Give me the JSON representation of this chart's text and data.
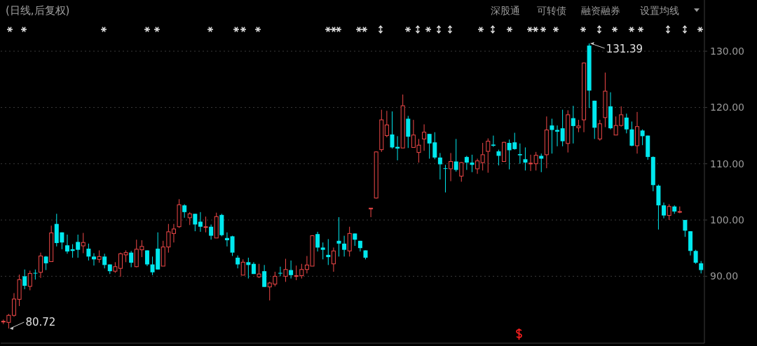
{
  "chart_data": {
    "type": "candlestick",
    "title": "(日线,后复权)",
    "categories": [
      null,
      null,
      null,
      null,
      null,
      null,
      null,
      null,
      null,
      null,
      null,
      null,
      null,
      null,
      null,
      null,
      null,
      null,
      null,
      null,
      null,
      null,
      null,
      null,
      null,
      null,
      null,
      null,
      null,
      null,
      null,
      null,
      null,
      null,
      null,
      null,
      null,
      null,
      null,
      null,
      null,
      null,
      null,
      null,
      null,
      null,
      null,
      null,
      null,
      null,
      null,
      null,
      null,
      null,
      null,
      null,
      null,
      null,
      null,
      null,
      null,
      null,
      null,
      null,
      null,
      null,
      null,
      null,
      null,
      null,
      null,
      null,
      null,
      null,
      null,
      null,
      null,
      null,
      null,
      null,
      null,
      null,
      null,
      null,
      null,
      null,
      null,
      null,
      null,
      null,
      null,
      null,
      null,
      null,
      null,
      null,
      null,
      null,
      null,
      null,
      null,
      null,
      null,
      null,
      null,
      null,
      null,
      null,
      null,
      null,
      null,
      null,
      null,
      null,
      null,
      null,
      null,
      null,
      null,
      null,
      null,
      null,
      null,
      null,
      null,
      null,
      null,
      null,
      null,
      null,
      null,
      null
    ],
    "ohlc": [
      [
        81.9,
        82.3,
        81.5,
        82.0
      ],
      [
        81.8,
        83.3,
        80.72,
        83.05
      ],
      [
        83.05,
        87.0,
        82.8,
        85.95
      ],
      [
        85.9,
        90.3,
        84.7,
        89.4
      ],
      [
        90.0,
        91.2,
        87.7,
        88.3
      ],
      [
        88.2,
        91.0,
        87.5,
        90.5
      ],
      [
        90.6,
        91.2,
        89.4,
        90.5
      ],
      [
        90.7,
        94.2,
        89.7,
        93.6
      ],
      [
        93.5,
        93.6,
        91.1,
        92.3
      ],
      [
        92.6,
        99.0,
        92.6,
        97.7
      ],
      [
        99.3,
        101.1,
        95.3,
        95.9
      ],
      [
        97.8,
        97.8,
        94.8,
        96.0
      ],
      [
        95.5,
        97.4,
        94.0,
        94.4
      ],
      [
        94.8,
        95.7,
        93.3,
        94.5
      ],
      [
        96.1,
        97.4,
        93.3,
        94.7
      ],
      [
        95.4,
        97.7,
        94.1,
        96.0
      ],
      [
        94.9,
        95.8,
        92.8,
        93.5
      ],
      [
        93.5,
        94.1,
        91.9,
        93.0
      ],
      [
        93.0,
        94.6,
        92.4,
        93.5
      ],
      [
        93.5,
        94.0,
        91.4,
        92.0
      ],
      [
        92.1,
        92.1,
        90.4,
        90.9
      ],
      [
        90.9,
        92.5,
        90.6,
        91.7
      ],
      [
        91.4,
        94.2,
        89.9,
        94.0
      ],
      [
        93.8,
        94.6,
        92.5,
        94.2
      ],
      [
        94.2,
        94.5,
        91.6,
        92.4
      ],
      [
        91.7,
        96.5,
        91.6,
        94.8
      ],
      [
        94.7,
        96.4,
        93.4,
        95.3
      ],
      [
        94.6,
        94.6,
        91.8,
        92.1
      ],
      [
        92.1,
        93.5,
        90.2,
        90.7
      ],
      [
        94.9,
        97.8,
        91.2,
        91.2
      ],
      [
        91.8,
        96.3,
        91.8,
        95.2
      ],
      [
        95.2,
        99.3,
        94.2,
        97.9
      ],
      [
        97.6,
        99.3,
        96.0,
        98.4
      ],
      [
        98.8,
        103.7,
        98.6,
        102.7
      ],
      [
        102.6,
        102.8,
        100.4,
        101.4
      ],
      [
        100.4,
        101.4,
        99.1,
        101.1
      ],
      [
        101.1,
        101.1,
        98.0,
        99.2
      ],
      [
        99.7,
        101.4,
        97.9,
        98.8
      ],
      [
        98.7,
        100.6,
        97.8,
        98.8
      ],
      [
        98.8,
        99.2,
        96.5,
        97.2
      ],
      [
        96.8,
        101.3,
        96.8,
        100.6
      ],
      [
        100.9,
        101.1,
        97.1,
        97.3
      ],
      [
        96.8,
        97.8,
        95.3,
        96.4
      ],
      [
        97.1,
        97.2,
        93.6,
        94.2
      ],
      [
        93.3,
        93.7,
        91.4,
        92.1
      ],
      [
        90.2,
        93.0,
        90.2,
        92.5
      ],
      [
        92.5,
        93.3,
        89.6,
        92.0
      ],
      [
        92.2,
        92.5,
        90.4,
        90.4
      ],
      [
        89.9,
        92.2,
        89.7,
        90.4
      ],
      [
        90.9,
        92.0,
        88.1,
        88.1
      ],
      [
        88.1,
        89.0,
        85.7,
        88.8
      ],
      [
        88.6,
        90.8,
        88.2,
        90.0
      ],
      [
        90.6,
        91.7,
        90.0,
        90.5
      ],
      [
        90.0,
        93.1,
        89.0,
        91.2
      ],
      [
        91.1,
        92.8,
        89.6,
        90.2
      ],
      [
        90.0,
        91.9,
        89.3,
        90.1
      ],
      [
        90.1,
        92.2,
        89.6,
        91.2
      ],
      [
        91.2,
        93.6,
        90.5,
        92.0
      ],
      [
        91.8,
        97.3,
        91.8,
        97.2
      ],
      [
        97.5,
        97.9,
        94.4,
        95.1
      ],
      [
        95.1,
        96.0,
        93.0,
        94.7
      ],
      [
        93.8,
        96.6,
        92.0,
        93.4
      ],
      [
        92.2,
        95.1,
        90.8,
        94.5
      ],
      [
        96.3,
        100.5,
        93.5,
        95.8
      ],
      [
        95.8,
        97.2,
        93.5,
        94.7
      ],
      [
        94.5,
        98.8,
        93.5,
        97.6
      ],
      [
        97.6,
        97.6,
        95.4,
        96.5
      ],
      [
        96.3,
        96.3,
        94.4,
        95.0
      ],
      [
        94.6,
        94.6,
        93.0,
        93.3
      ],
      [
        102.1,
        102.1,
        100.5,
        102.1
      ],
      [
        103.9,
        112.2,
        103.8,
        112.1
      ],
      [
        112.5,
        119.6,
        112.1,
        117.8
      ],
      [
        115.0,
        119.4,
        114.7,
        116.9
      ],
      [
        115.2,
        119.3,
        112.7,
        112.9
      ],
      [
        113.0,
        114.9,
        110.6,
        112.7
      ],
      [
        112.8,
        122.3,
        112.8,
        120.3
      ],
      [
        118.0,
        118.5,
        112.8,
        114.8
      ],
      [
        112.9,
        117.8,
        112.9,
        115.1
      ],
      [
        112.0,
        114.4,
        110.2,
        113.3
      ],
      [
        114.4,
        117.0,
        112.3,
        115.6
      ],
      [
        115.3,
        115.3,
        110.9,
        113.6
      ],
      [
        113.8,
        115.6,
        110.8,
        111.1
      ],
      [
        111.1,
        111.9,
        107.2,
        109.9
      ],
      [
        109.2,
        109.8,
        104.9,
        109.1
      ],
      [
        109.1,
        111.9,
        106.9,
        110.4
      ],
      [
        110.4,
        114.4,
        108.6,
        108.9
      ],
      [
        107.8,
        110.3,
        106.8,
        110.2
      ],
      [
        111.2,
        111.4,
        108.9,
        110.2
      ],
      [
        110.2,
        111.6,
        108.5,
        109.8
      ],
      [
        109.1,
        110.9,
        108.2,
        110.5
      ],
      [
        110.2,
        113.7,
        108.8,
        111.6
      ],
      [
        112.2,
        114.5,
        108.4,
        114.0
      ],
      [
        113.4,
        115.0,
        113.0,
        113.2
      ],
      [
        112.2,
        112.5,
        109.7,
        111.4
      ],
      [
        110.4,
        113.9,
        110.4,
        113.8
      ],
      [
        113.7,
        114.3,
        109.0,
        112.4
      ],
      [
        113.8,
        115.5,
        112.5,
        112.6
      ],
      [
        111.7,
        113.6,
        110.0,
        111.5
      ],
      [
        110.8,
        112.9,
        108.8,
        110.2
      ],
      [
        110.0,
        111.6,
        108.7,
        110.1
      ],
      [
        110.0,
        112.1,
        108.8,
        111.5
      ],
      [
        111.4,
        111.8,
        108.5,
        110.9
      ],
      [
        111.6,
        118.4,
        109.2,
        116.0
      ],
      [
        116.8,
        118.0,
        111.8,
        116.0
      ],
      [
        116.0,
        116.8,
        113.1,
        115.7
      ],
      [
        116.3,
        119.6,
        113.1,
        114.0
      ],
      [
        113.6,
        119.5,
        112.0,
        118.7
      ],
      [
        118.1,
        120.3,
        113.6,
        116.7
      ],
      [
        116.4,
        117.8,
        115.6,
        116.7
      ],
      [
        117.8,
        128.0,
        115.6,
        127.9
      ],
      [
        131.0,
        131.39,
        119.9,
        123.0
      ],
      [
        121.2,
        121.2,
        114.4,
        116.4
      ],
      [
        114.4,
        117.8,
        114.1,
        117.1
      ],
      [
        118.2,
        126.2,
        116.5,
        122.9
      ],
      [
        120.2,
        122.7,
        116.1,
        116.3
      ],
      [
        115.1,
        118.4,
        115.1,
        116.8
      ],
      [
        116.8,
        120.2,
        116.6,
        118.7
      ],
      [
        118.2,
        118.9,
        115.4,
        116.1
      ],
      [
        116.1,
        117.5,
        113.1,
        113.2
      ],
      [
        113.2,
        119.2,
        111.8,
        116.6
      ],
      [
        115.9,
        116.1,
        113.3,
        114.9
      ],
      [
        115.0,
        115.0,
        110.7,
        111.2
      ],
      [
        111.2,
        111.3,
        105.1,
        106.2
      ],
      [
        106.1,
        106.3,
        98.3,
        102.6
      ],
      [
        102.6,
        103.1,
        100.3,
        100.8
      ],
      [
        100.8,
        102.8,
        100.0,
        102.4
      ],
      [
        102.4,
        102.6,
        101.1,
        101.5
      ],
      [
        101.5,
        102.4,
        101.2,
        101.5
      ],
      [
        100.0,
        100.0,
        97.0,
        98.1
      ],
      [
        98.0,
        98.0,
        93.7,
        94.5
      ],
      [
        94.5,
        94.7,
        92.2,
        92.4
      ],
      [
        92.3,
        92.7,
        90.5,
        91.1
      ]
    ],
    "ylim": [
      78.1,
      139.1
    ],
    "yticks": [
      {
        "value": 90,
        "label": "90.00"
      },
      {
        "value": 100,
        "label": "100.00"
      },
      {
        "value": 110,
        "label": "110.00"
      },
      {
        "value": 120,
        "label": "120.00"
      },
      {
        "value": 130,
        "label": "130.00"
      }
    ],
    "grid": "y",
    "annotations": [
      "80.72",
      "131.39",
      "深股通",
      "可转债",
      "融资融券",
      "设置均线"
    ]
  }
}
